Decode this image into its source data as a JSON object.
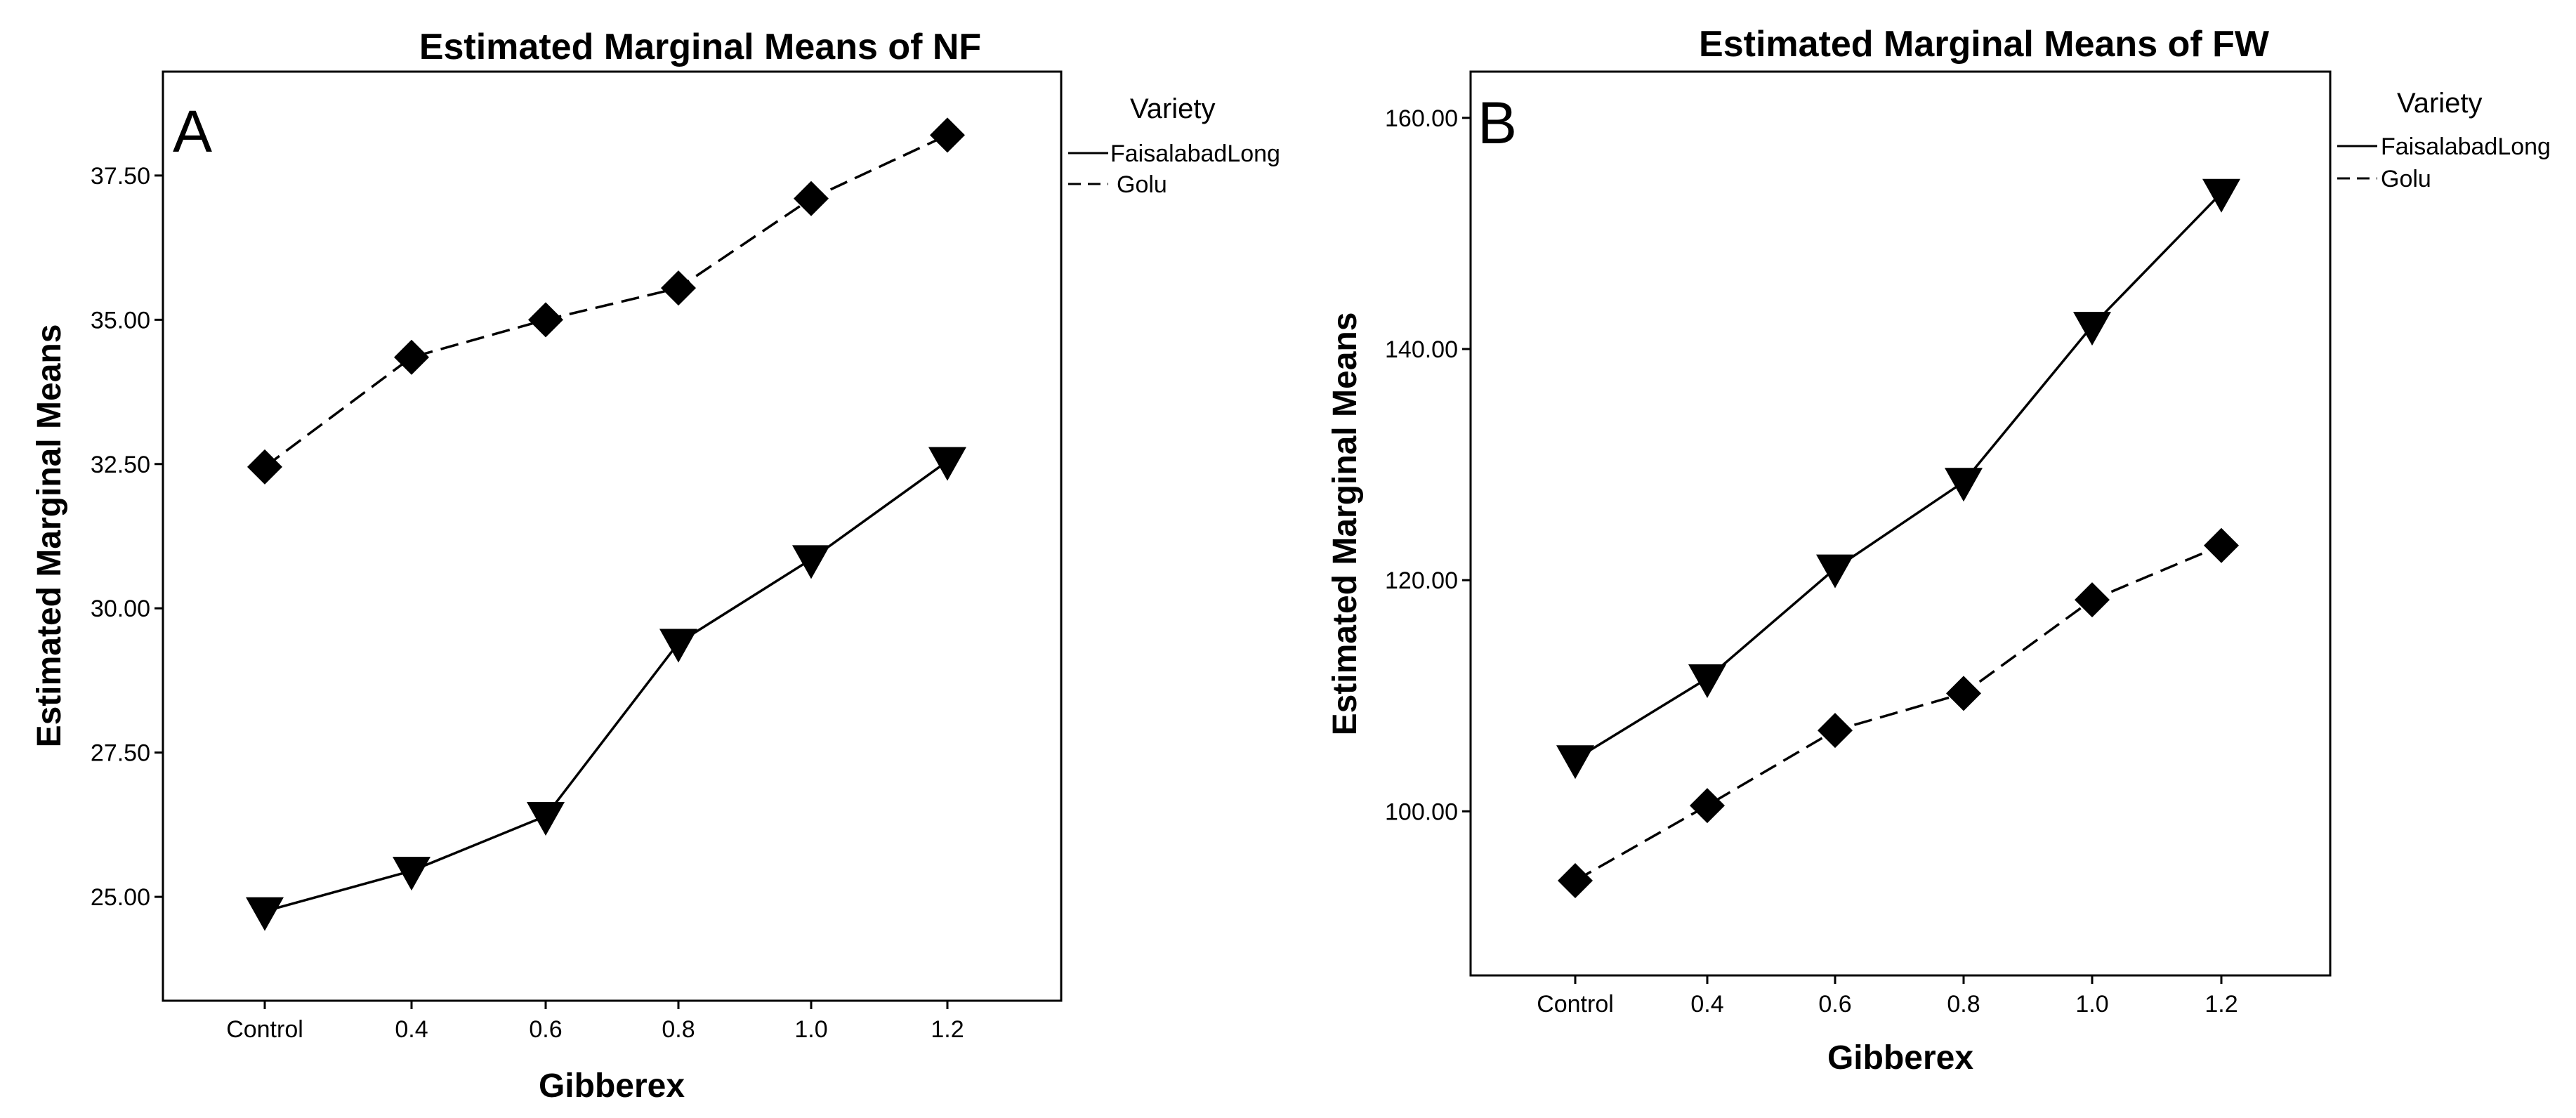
{
  "chart_data": [
    {
      "type": "line",
      "panel_label": "A",
      "title": "Estimated Marginal Means of NF",
      "xlabel": "Gibberex",
      "ylabel": "Estimated Marginal Means",
      "categories": [
        "Control",
        "0.4",
        "0.6",
        "0.8",
        "1.0",
        "1.2"
      ],
      "ylim": [
        23.2,
        39.3
      ],
      "yticks": [
        25.0,
        27.5,
        30.0,
        32.5,
        35.0,
        37.5
      ],
      "ytick_labels": [
        "25.00",
        "27.50",
        "30.00",
        "32.50",
        "35.00",
        "37.50"
      ],
      "grid": false,
      "legend": {
        "title": "Variety",
        "position": "right",
        "entries": [
          "FaisalabadLong",
          "Golu"
        ]
      },
      "series": [
        {
          "name": "FaisalabadLong",
          "line": "solid",
          "marker": "triangle-down",
          "values": [
            24.75,
            25.45,
            26.4,
            29.4,
            30.85,
            32.55
          ]
        },
        {
          "name": "Golu",
          "line": "dashed",
          "marker": "diamond",
          "values": [
            32.45,
            34.35,
            35.0,
            35.55,
            37.1,
            38.2
          ]
        }
      ]
    },
    {
      "type": "line",
      "panel_label": "B",
      "title": "Estimated Marginal Means of FW",
      "xlabel": "Gibberex",
      "ylabel": "Estimated Marginal Means",
      "categories": [
        "Control",
        "0.4",
        "0.6",
        "0.8",
        "1.0",
        "1.2"
      ],
      "ylim": [
        85.8,
        164.0
      ],
      "yticks": [
        100,
        120,
        140,
        160
      ],
      "ytick_labels": [
        "100.00",
        "120.00",
        "140.00",
        "160.00"
      ],
      "grid": false,
      "legend": {
        "title": "Variety",
        "position": "right",
        "entries": [
          "FaisalabadLong",
          "Golu"
        ]
      },
      "series": [
        {
          "name": "FaisalabadLong",
          "line": "solid",
          "marker": "triangle-down",
          "values": [
            104.5,
            111.5,
            121.0,
            128.5,
            142.0,
            153.5
          ]
        },
        {
          "name": "Golu",
          "line": "dashed",
          "marker": "diamond",
          "values": [
            94.0,
            100.5,
            107.0,
            110.2,
            118.3,
            123.0
          ]
        }
      ]
    }
  ]
}
